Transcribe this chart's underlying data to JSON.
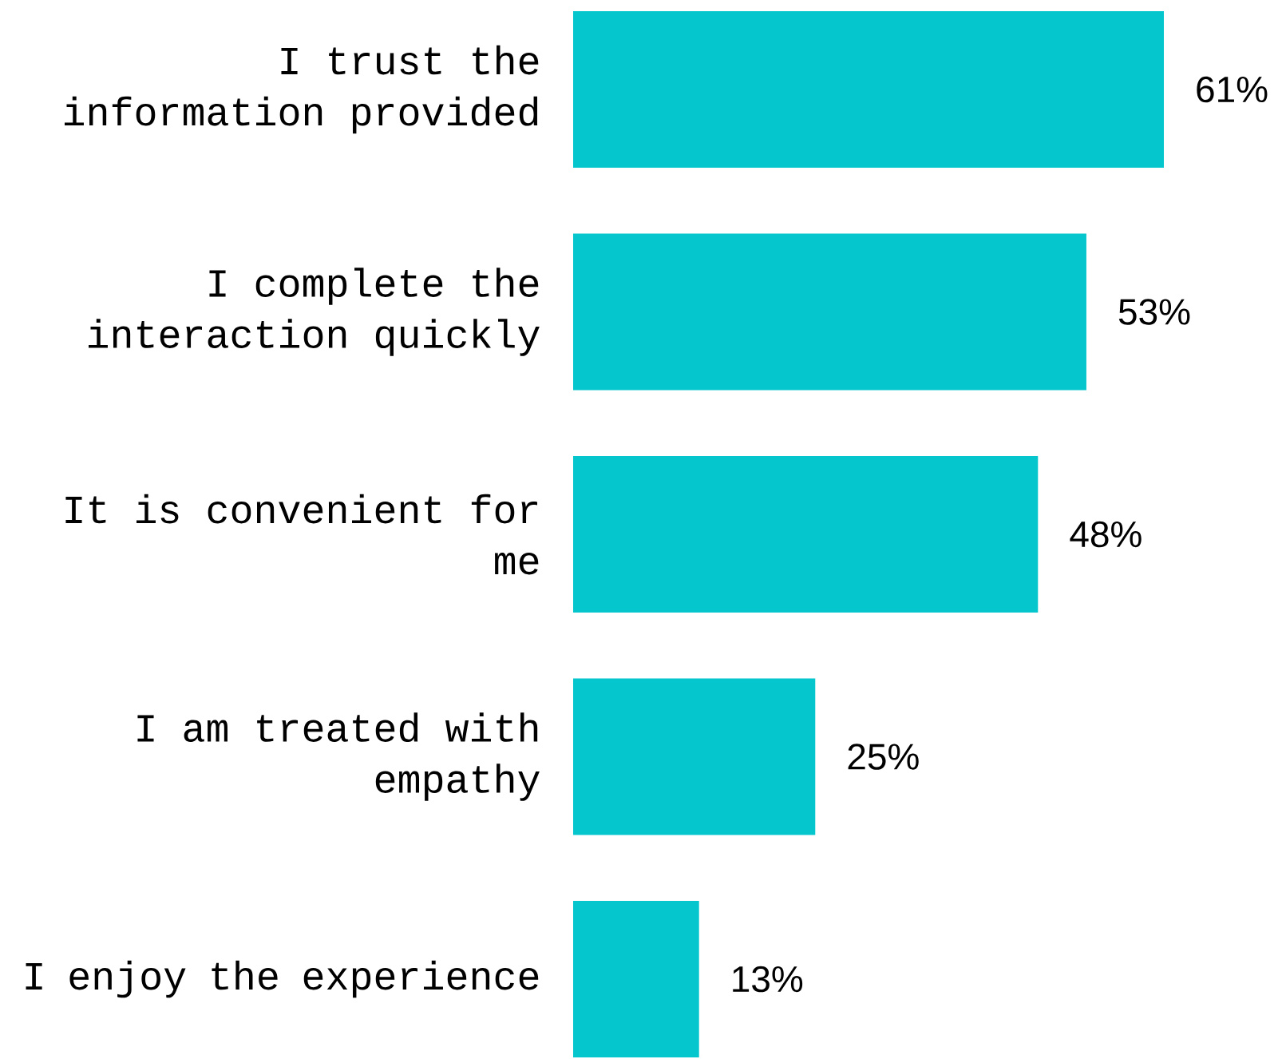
{
  "chart_data": {
    "type": "bar",
    "orientation": "horizontal",
    "color": "#05c6cc",
    "categories": [
      "I trust the information provided",
      "I complete the interaction quickly",
      "It is convenient for me",
      "I am treated with empathy",
      "I enjoy the experience"
    ],
    "values": [
      61,
      53,
      48,
      25,
      13
    ],
    "value_labels": [
      "61%",
      "53%",
      "48%",
      "25%",
      "13%"
    ]
  }
}
